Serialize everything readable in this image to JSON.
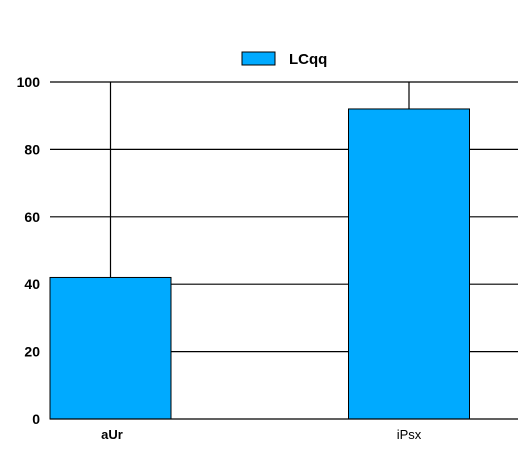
{
  "chart_data": {
    "type": "bar",
    "categories": [
      "aUr",
      "iPsx"
    ],
    "series": [
      {
        "name": "LCqq",
        "values": [
          42,
          92
        ],
        "color": "#00AAFF"
      }
    ],
    "ylim": [
      0,
      100
    ],
    "yticks": [
      "0",
      "20",
      "40",
      "60",
      "80",
      "100"
    ],
    "grid": true,
    "legend_position": "top-center",
    "whisker_top": [
      100,
      100
    ]
  }
}
